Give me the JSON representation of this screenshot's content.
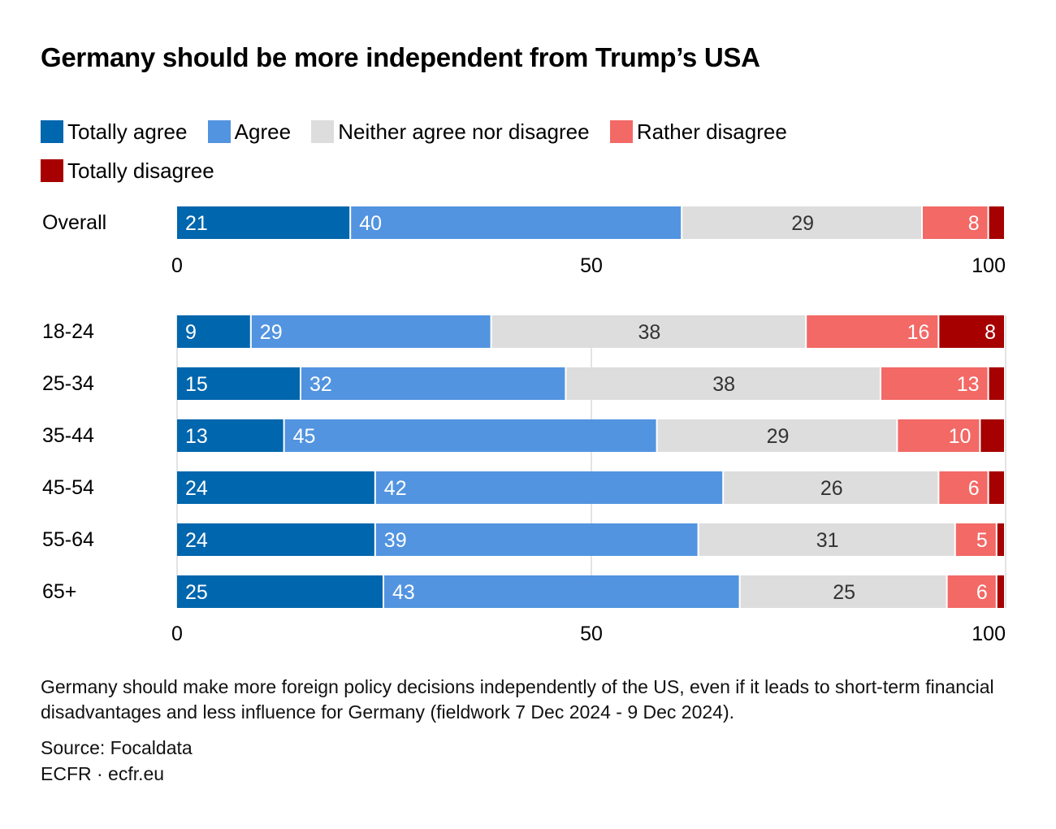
{
  "chart_data": {
    "type": "bar",
    "orientation": "horizontal-stacked",
    "title": "Germany should be more independent from Trump’s USA",
    "legend_position": "top",
    "series": [
      {
        "name": "Totally agree",
        "color": "#0066ad",
        "label_color": "#ffffff"
      },
      {
        "name": "Agree",
        "color": "#5294e0",
        "label_color": "#ffffff"
      },
      {
        "name": "Neither agree nor disagree",
        "color": "#dddddd",
        "label_color": "#333333"
      },
      {
        "name": "Rather disagree",
        "color": "#f26966",
        "label_color": "#ffffff"
      },
      {
        "name": "Totally disagree",
        "color": "#a60000",
        "label_color": "#ffffff"
      }
    ],
    "panels": [
      {
        "categories": [
          "Overall"
        ],
        "values": [
          [
            21,
            40,
            29,
            8,
            3
          ]
        ],
        "labels": [
          [
            "21",
            "40",
            "29",
            "8",
            ""
          ]
        ]
      },
      {
        "categories": [
          "18-24",
          "25-34",
          "35-44",
          "45-54",
          "55-64",
          "65+"
        ],
        "values": [
          [
            9,
            29,
            38,
            16,
            8
          ],
          [
            15,
            32,
            38,
            13,
            2
          ],
          [
            13,
            45,
            29,
            10,
            3
          ],
          [
            24,
            42,
            26,
            6,
            2
          ],
          [
            24,
            39,
            31,
            5,
            1
          ],
          [
            25,
            43,
            25,
            6,
            1
          ]
        ],
        "labels": [
          [
            "9",
            "29",
            "38",
            "16",
            "8"
          ],
          [
            "15",
            "32",
            "38",
            "13",
            ""
          ],
          [
            "13",
            "45",
            "29",
            "10",
            ""
          ],
          [
            "24",
            "42",
            "26",
            "6",
            ""
          ],
          [
            "24",
            "39",
            "31",
            "5",
            ""
          ],
          [
            "25",
            "43",
            "25",
            "6",
            ""
          ]
        ]
      }
    ],
    "xlim": [
      0,
      100
    ],
    "xticks": [
      0,
      50,
      100
    ],
    "xtick_labels": [
      "0",
      "50",
      "100"
    ],
    "grid": true,
    "xlabel": "",
    "ylabel": ""
  },
  "footnote": "Germany should make more foreign policy decisions independently of the US, even if it leads to short-term financial disadvantages and less influence for Germany (fieldwork 7 Dec 2024 - 9 Dec 2024).",
  "source": "Source: Focaldata",
  "credit": "ECFR · ecfr.eu"
}
